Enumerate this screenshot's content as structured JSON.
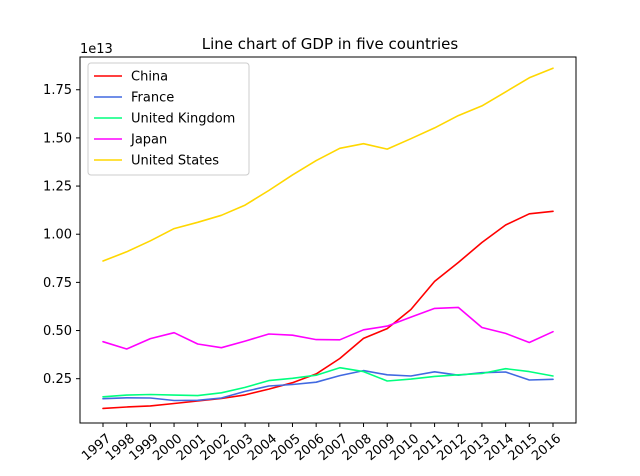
{
  "chart_data": {
    "type": "line",
    "title": "Line chart of GDP in five countries",
    "xlabel": "",
    "ylabel": "",
    "y_multiplier_label": "1e13",
    "x": [
      "1997",
      "1998",
      "1999",
      "2000",
      "2001",
      "2002",
      "2003",
      "2004",
      "2005",
      "2006",
      "2007",
      "2008",
      "2009",
      "2010",
      "2011",
      "2012",
      "2013",
      "2014",
      "2015",
      "2016"
    ],
    "yticks": [
      0.25,
      0.5,
      0.75,
      1.0,
      1.25,
      1.5,
      1.75
    ],
    "ytick_labels": [
      "0.25",
      "0.50",
      "0.75",
      "1.00",
      "1.25",
      "1.50",
      "1.75"
    ],
    "ylim": [
      0.02,
      1.92
    ],
    "grid": false,
    "legend_position": "top-left",
    "series": [
      {
        "name": "China",
        "color": "#ff0000",
        "values": [
          0.096,
          0.103,
          0.109,
          0.121,
          0.134,
          0.147,
          0.166,
          0.196,
          0.229,
          0.275,
          0.355,
          0.459,
          0.51,
          0.609,
          0.755,
          0.853,
          0.957,
          1.048,
          1.106,
          1.119
        ]
      },
      {
        "name": "France",
        "color": "#4169e1",
        "values": [
          0.146,
          0.151,
          0.15,
          0.137,
          0.138,
          0.15,
          0.184,
          0.212,
          0.22,
          0.232,
          0.266,
          0.292,
          0.27,
          0.264,
          0.286,
          0.268,
          0.281,
          0.285,
          0.243,
          0.247
        ]
      },
      {
        "name": "United Kingdom",
        "color": "#00ff7f",
        "values": [
          0.156,
          0.165,
          0.168,
          0.165,
          0.162,
          0.177,
          0.205,
          0.24,
          0.252,
          0.268,
          0.307,
          0.287,
          0.238,
          0.248,
          0.262,
          0.27,
          0.277,
          0.302,
          0.287,
          0.264
        ]
      },
      {
        "name": "Japan",
        "color": "#ff00ff",
        "values": [
          0.442,
          0.404,
          0.458,
          0.489,
          0.43,
          0.411,
          0.445,
          0.482,
          0.476,
          0.453,
          0.452,
          0.504,
          0.523,
          0.57,
          0.615,
          0.62,
          0.516,
          0.485,
          0.438,
          0.494
        ]
      },
      {
        "name": "United States",
        "color": "#ffd700",
        "values": [
          0.861,
          0.909,
          0.966,
          1.029,
          1.062,
          1.098,
          1.151,
          1.227,
          1.308,
          1.382,
          1.446,
          1.47,
          1.442,
          1.496,
          1.552,
          1.616,
          1.666,
          1.739,
          1.812,
          1.862
        ]
      }
    ]
  }
}
